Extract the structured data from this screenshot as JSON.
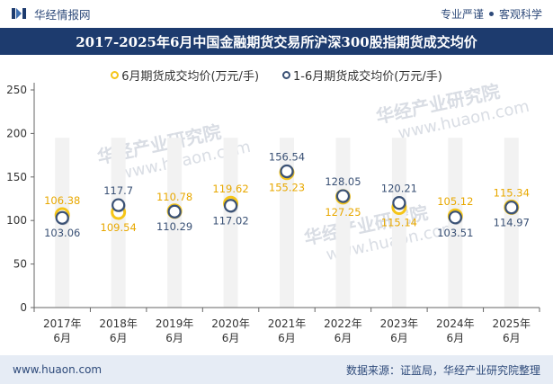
{
  "header": {
    "brand": "华经情报网",
    "tagline_left": "专业严谨",
    "tagline_right": "客观科学"
  },
  "title": "2017-2025年6月中国金融期货交易所沪深300股指期货成交均价",
  "footer": {
    "url": "www.huaon.com",
    "source": "数据来源：证监局，华经产业研究院整理"
  },
  "watermark": {
    "text": "华经产业研究院",
    "url": "www.huaon.com"
  },
  "colors": {
    "series1": "#f5c518",
    "series2": "#3a5175",
    "title_bg": "#1d3b6e",
    "band": "#f2f2f2"
  },
  "chart_data": {
    "type": "scatter",
    "categories": [
      "2017年\n6月",
      "2018年\n6月",
      "2019年\n6月",
      "2020年\n6月",
      "2021年\n6月",
      "2022年\n6月",
      "2023年\n6月",
      "2024年\n6月",
      "2025年\n6月"
    ],
    "series": [
      {
        "name": "6月期货成交均价(万元/手)",
        "values": [
          106.38,
          109.54,
          110.78,
          119.62,
          155.23,
          127.25,
          115.14,
          105.12,
          115.34
        ]
      },
      {
        "name": "1-6月期货成交均价(万元/手)",
        "values": [
          103.06,
          117.7,
          110.29,
          117.02,
          156.54,
          128.05,
          120.21,
          103.51,
          114.97
        ]
      }
    ],
    "series1_labels": [
      "106.38",
      "109.54",
      "110.78",
      "119.62",
      "155.23",
      "127.25",
      "115.14",
      "105.12",
      "115.34"
    ],
    "series2_labels": [
      "103.06",
      "117.7",
      "110.29",
      "117.02",
      "156.54",
      "128.05",
      "120.21",
      "103.51",
      "114.97"
    ],
    "yticks": [
      "0",
      "50",
      "100",
      "150",
      "200",
      "250"
    ],
    "ylim": [
      0,
      250
    ],
    "xlabel": "",
    "ylabel": ""
  }
}
